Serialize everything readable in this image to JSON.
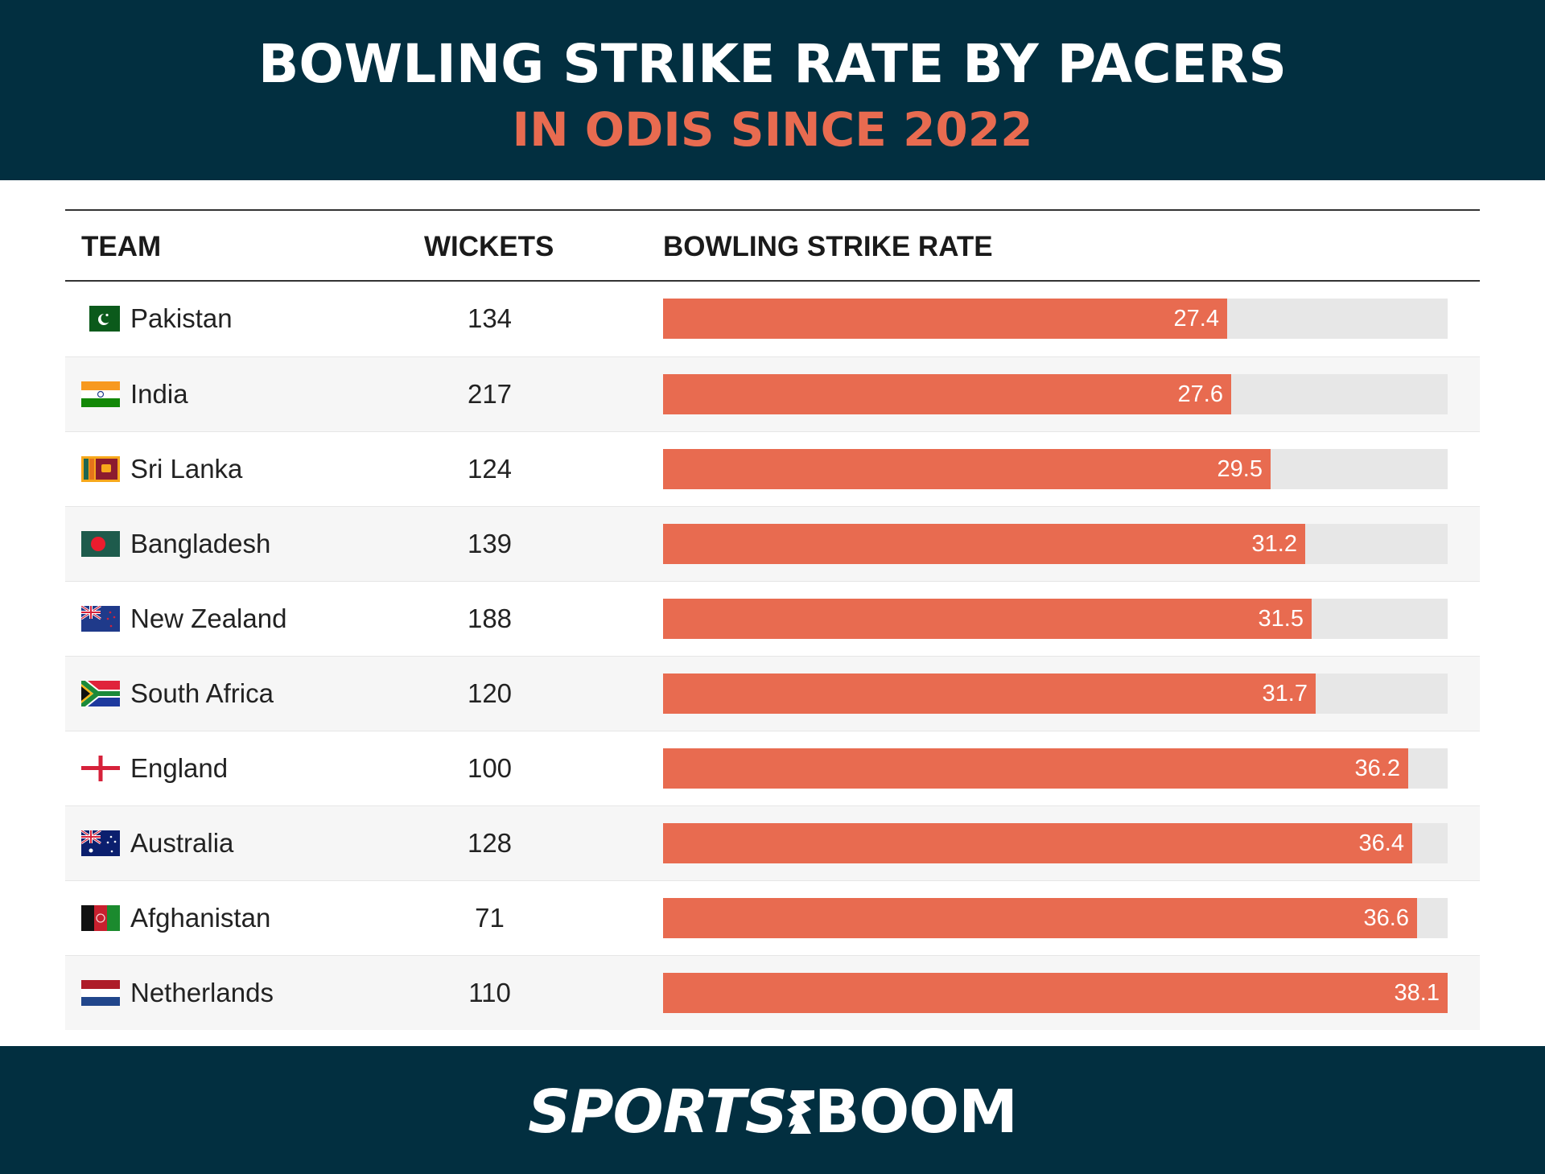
{
  "header": {
    "title": "BOWLING STRIKE RATE BY PACERS",
    "subtitle": "IN ODIS SINCE 2022"
  },
  "table": {
    "columns": [
      "TEAM",
      "WICKETS",
      "BOWLING STRIKE RATE"
    ],
    "rows": [
      {
        "team": "Pakistan",
        "flag": "pakistan-flag-icon",
        "wickets": "134",
        "strike_rate": "27.4"
      },
      {
        "team": "India",
        "flag": "india-flag-icon",
        "wickets": "217",
        "strike_rate": "27.6"
      },
      {
        "team": "Sri Lanka",
        "flag": "sri-lanka-flag-icon",
        "wickets": "124",
        "strike_rate": "29.5"
      },
      {
        "team": "Bangladesh",
        "flag": "bangladesh-flag-icon",
        "wickets": "139",
        "strike_rate": "31.2"
      },
      {
        "team": "New Zealand",
        "flag": "new-zealand-flag-icon",
        "wickets": "188",
        "strike_rate": "31.5"
      },
      {
        "team": "South Africa",
        "flag": "south-africa-flag-icon",
        "wickets": "120",
        "strike_rate": "31.7"
      },
      {
        "team": "England",
        "flag": "england-flag-icon",
        "wickets": "100",
        "strike_rate": "36.2"
      },
      {
        "team": "Australia",
        "flag": "australia-flag-icon",
        "wickets": "128",
        "strike_rate": "36.4"
      },
      {
        "team": "Afghanistan",
        "flag": "afghanistan-flag-icon",
        "wickets": "71",
        "strike_rate": "36.6"
      },
      {
        "team": "Netherlands",
        "flag": "netherlands-flag-icon",
        "wickets": "110",
        "strike_rate": "38.1"
      }
    ]
  },
  "footer": {
    "logo_part1": "SPORTS",
    "logo_part2": "BOOM"
  },
  "colors": {
    "band": "#022F40",
    "accent": "#E86B50",
    "track": "#E7E7E7",
    "alt_row": "#F6F6F6"
  },
  "chart_data": {
    "type": "table",
    "title": "BOWLING STRIKE RATE BY PACERS",
    "subtitle": "IN ODIS SINCE 2022",
    "columns": [
      "TEAM",
      "WICKETS",
      "BOWLING STRIKE RATE"
    ],
    "categories": [
      "Pakistan",
      "India",
      "Sri Lanka",
      "Bangladesh",
      "New Zealand",
      "South Africa",
      "England",
      "Australia",
      "Afghanistan",
      "Netherlands"
    ],
    "series": [
      {
        "name": "WICKETS",
        "values": [
          134,
          217,
          124,
          139,
          188,
          120,
          100,
          128,
          71,
          110
        ]
      },
      {
        "name": "BOWLING STRIKE RATE",
        "values": [
          27.4,
          27.6,
          29.5,
          31.2,
          31.5,
          31.7,
          36.2,
          36.4,
          36.6,
          38.1
        ]
      }
    ],
    "bar_scale_max": 38.1,
    "xlabel": "",
    "ylabel": ""
  }
}
